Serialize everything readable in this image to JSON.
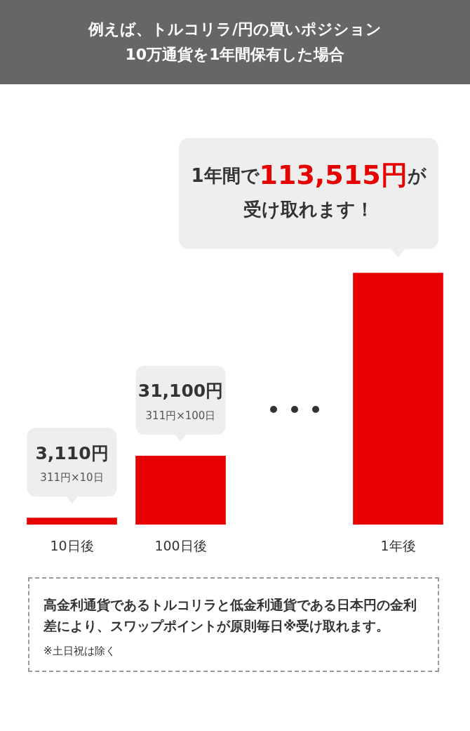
{
  "chart_data": {
    "type": "bar",
    "title": "例えば、トルコリラ/円の買いポジション",
    "subtitle": "10万通貨を1年間保有した場合",
    "categories": [
      "10日後",
      "100日後",
      null,
      "1年後"
    ],
    "values": [
      3110,
      31100,
      null,
      113515
    ],
    "color": "#e60000",
    "value_labels": [
      "3,110円\n311円×10日",
      "31,100円\n311円×100日",
      null,
      "1年間で113,515円が受け取れます！"
    ],
    "tick_labels": "x",
    "grid": false,
    "legend": false,
    "annotations": [
      "高金利通貨であるトルコリラと低金利通貨である日本円の金利差により、スワップポイントが原則毎日※受け取れます。",
      "※土日祝は除く"
    ]
  }
}
